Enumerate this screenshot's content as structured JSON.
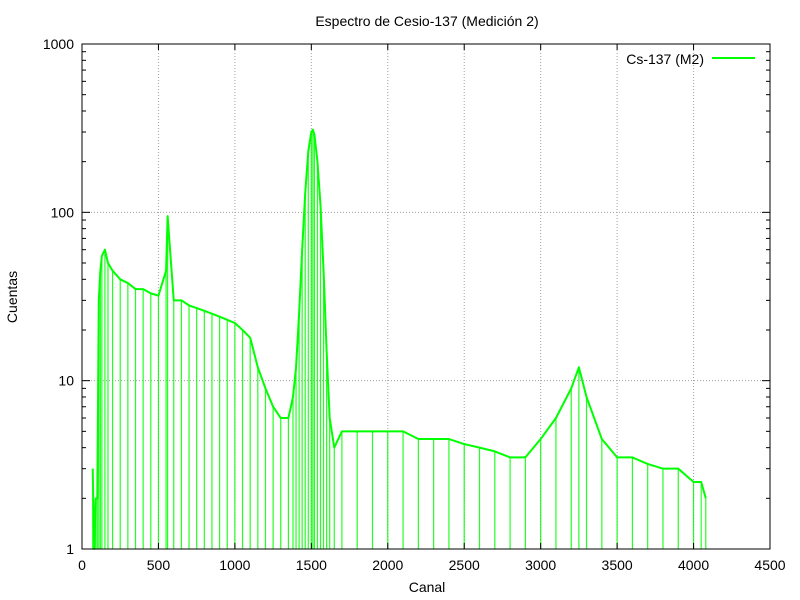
{
  "chart_data": {
    "type": "line",
    "title": "Espectro de Cesio-137 (Medición 2)",
    "xlabel": "Canal",
    "ylabel": "Cuentas",
    "xlim": [
      0,
      4500
    ],
    "ylim": [
      1,
      1000
    ],
    "y_scale": "log",
    "x_ticks": [
      0,
      500,
      1000,
      1500,
      2000,
      2500,
      3000,
      3500,
      4000,
      4500
    ],
    "y_ticks": [
      1,
      10,
      100,
      1000
    ],
    "grid": true,
    "legend_position": "top-right",
    "series": [
      {
        "name": "Cs-137 (M2)",
        "color": "#00ff00",
        "points": [
          [
            70,
            3
          ],
          [
            80,
            1
          ],
          [
            90,
            2
          ],
          [
            100,
            2
          ],
          [
            110,
            30
          ],
          [
            120,
            45
          ],
          [
            130,
            55
          ],
          [
            150,
            60
          ],
          [
            170,
            50
          ],
          [
            200,
            45
          ],
          [
            250,
            40
          ],
          [
            300,
            38
          ],
          [
            350,
            35
          ],
          [
            400,
            35
          ],
          [
            450,
            33
          ],
          [
            500,
            32
          ],
          [
            550,
            45
          ],
          [
            560,
            95
          ],
          [
            600,
            30
          ],
          [
            650,
            30
          ],
          [
            700,
            28
          ],
          [
            750,
            27
          ],
          [
            800,
            26
          ],
          [
            850,
            25
          ],
          [
            900,
            24
          ],
          [
            950,
            23
          ],
          [
            1000,
            22
          ],
          [
            1050,
            20
          ],
          [
            1100,
            18
          ],
          [
            1150,
            12
          ],
          [
            1200,
            9
          ],
          [
            1250,
            7
          ],
          [
            1300,
            6
          ],
          [
            1350,
            6
          ],
          [
            1380,
            8
          ],
          [
            1400,
            12
          ],
          [
            1420,
            25
          ],
          [
            1440,
            60
          ],
          [
            1460,
            130
          ],
          [
            1480,
            230
          ],
          [
            1500,
            300
          ],
          [
            1510,
            310
          ],
          [
            1520,
            290
          ],
          [
            1540,
            200
          ],
          [
            1560,
            110
          ],
          [
            1580,
            45
          ],
          [
            1600,
            15
          ],
          [
            1620,
            6
          ],
          [
            1650,
            4
          ],
          [
            1700,
            5
          ],
          [
            1800,
            5
          ],
          [
            1900,
            5
          ],
          [
            2000,
            5
          ],
          [
            2100,
            5
          ],
          [
            2200,
            4.5
          ],
          [
            2300,
            4.5
          ],
          [
            2400,
            4.5
          ],
          [
            2500,
            4.2
          ],
          [
            2600,
            4
          ],
          [
            2700,
            3.8
          ],
          [
            2800,
            3.5
          ],
          [
            2900,
            3.5
          ],
          [
            3000,
            4.5
          ],
          [
            3100,
            6
          ],
          [
            3200,
            9
          ],
          [
            3250,
            12
          ],
          [
            3300,
            8
          ],
          [
            3400,
            4.5
          ],
          [
            3500,
            3.5
          ],
          [
            3600,
            3.5
          ],
          [
            3700,
            3.2
          ],
          [
            3800,
            3
          ],
          [
            3900,
            3
          ],
          [
            4000,
            2.5
          ],
          [
            4050,
            2.5
          ],
          [
            4080,
            2
          ]
        ]
      }
    ]
  }
}
